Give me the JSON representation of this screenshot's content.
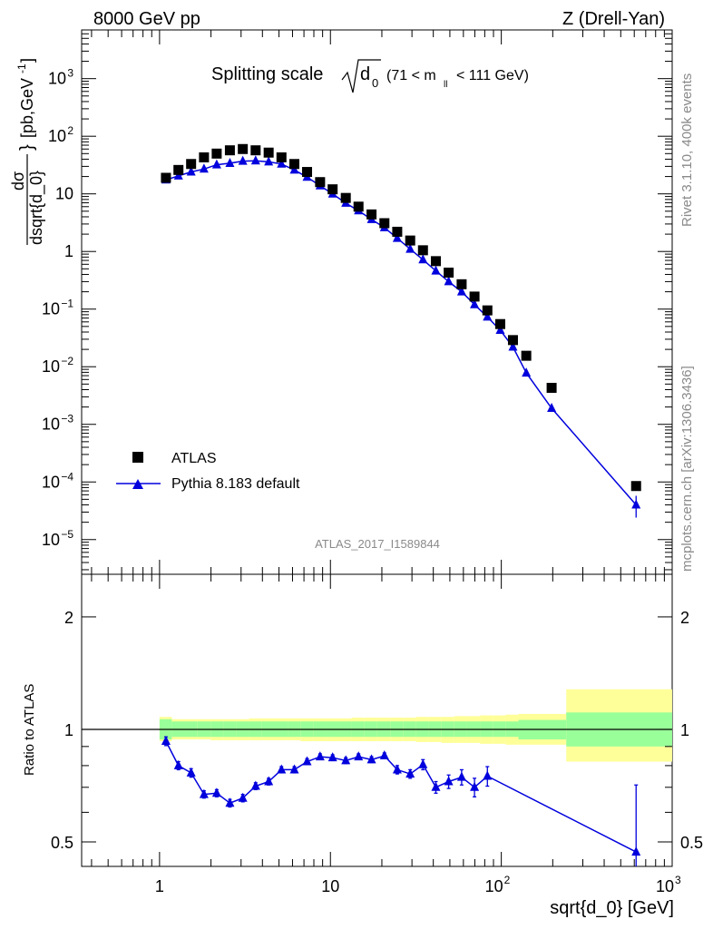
{
  "header": {
    "left_label": "8000 GeV pp",
    "right_label": "Z (Drell-Yan)"
  },
  "plot": {
    "title_prefix": "Splitting scale",
    "title_symbol": "d",
    "title_subscript": "0",
    "title_cut_open": "(71 < m",
    "title_cut_sub": "ll",
    "title_cut_close": "< 111 GeV)",
    "ylabel_top": "dσ",
    "ylabel_bottom": "dsqrt{d_0}",
    "ylabel_units": "[pb,GeV",
    "ylabel_units_exp": "-1",
    "ylabel_units_close": "]",
    "analysis_tag": "ATLAS_2017_I1589844",
    "ratio_ylabel": "Ratio to ATLAS",
    "xlabel": "sqrt{d_0} [GeV]"
  },
  "side_labels": {
    "rivet": "Rivet 3.1.10,  400k events",
    "mcplots": "mcplots.cern.ch [arXiv:1306.3436]"
  },
  "legend": {
    "data_label": "ATLAS",
    "mc_label": "Pythia 8.183 default"
  },
  "colors": {
    "data": "#000000",
    "mc": "#0000dd",
    "band_inner": "#99ff99",
    "band_outer": "#ffff99"
  },
  "axes": {
    "x_ticks": [
      {
        "v": 1,
        "base": "1",
        "exp": ""
      },
      {
        "v": 10,
        "base": "10",
        "exp": ""
      },
      {
        "v": 100,
        "base": "10",
        "exp": "2"
      },
      {
        "v": 1000,
        "base": "10",
        "exp": "3"
      }
    ],
    "y_main_ticks": [
      {
        "v": 1e-05,
        "base": "10",
        "exp": "−5"
      },
      {
        "v": 0.0001,
        "base": "10",
        "exp": "−4"
      },
      {
        "v": 0.001,
        "base": "10",
        "exp": "−3"
      },
      {
        "v": 0.01,
        "base": "10",
        "exp": "−2"
      },
      {
        "v": 0.1,
        "base": "10",
        "exp": "−1"
      },
      {
        "v": 1,
        "base": "1",
        "exp": ""
      },
      {
        "v": 10,
        "base": "10",
        "exp": ""
      },
      {
        "v": 100,
        "base": "10",
        "exp": "2"
      },
      {
        "v": 1000,
        "base": "10",
        "exp": "3"
      }
    ],
    "y_ratio_ticks": [
      "0.5",
      "1",
      "2"
    ]
  },
  "chart_data": [
    {
      "type": "scatter",
      "panel": "main",
      "x_scale": "log",
      "y_scale": "log",
      "xlim": [
        0.35,
        1000
      ],
      "ylim": [
        2.5e-06,
        7000
      ],
      "series": [
        {
          "name": "ATLAS",
          "marker": "square",
          "x": [
            1.09,
            1.29,
            1.53,
            1.82,
            2.16,
            2.58,
            3.07,
            3.65,
            4.35,
            5.17,
            6.15,
            7.3,
            8.7,
            10.3,
            12.3,
            14.6,
            17.4,
            20.7,
            24.6,
            29.3,
            34.8,
            41.4,
            49.2,
            58.6,
            69.7,
            82.9,
            98.6,
            117,
            140,
            197,
            615
          ],
          "y": [
            19,
            26,
            33,
            43,
            50,
            57,
            60,
            57,
            52,
            43,
            33,
            24,
            16,
            12,
            8.5,
            6,
            4.4,
            3.1,
            2.2,
            1.55,
            1.05,
            0.68,
            0.43,
            0.27,
            0.165,
            0.095,
            0.055,
            0.029,
            0.0155,
            0.0043,
            8.5e-05
          ]
        },
        {
          "name": "Pythia 8.183 default",
          "marker": "triangle",
          "x": [
            1.09,
            1.29,
            1.53,
            1.82,
            2.16,
            2.58,
            3.07,
            3.65,
            4.35,
            5.17,
            6.15,
            7.3,
            8.7,
            10.3,
            12.3,
            14.6,
            17.4,
            20.7,
            24.6,
            29.3,
            34.8,
            41.4,
            49.2,
            58.6,
            69.7,
            82.9,
            98.6,
            117,
            140,
            197,
            615
          ],
          "y": [
            17.5,
            20.5,
            24,
            27,
            32,
            34,
            37,
            37.5,
            36,
            33,
            26,
            19.5,
            13.8,
            10,
            6.9,
            5.1,
            3.6,
            2.6,
            1.7,
            1.1,
            0.72,
            0.46,
            0.3,
            0.2,
            0.12,
            0.073,
            0.043,
            0.022,
            0.0078,
            0.0019,
            4e-05
          ]
        }
      ]
    },
    {
      "type": "line",
      "panel": "ratio",
      "x_scale": "log",
      "y_scale": "log",
      "xlim": [
        0.35,
        1000
      ],
      "ylim": [
        0.43,
        2.6
      ],
      "reference_line": 1,
      "band": {
        "x_edges": [
          1,
          1.18,
          1.41,
          1.67,
          1.99,
          2.36,
          2.81,
          3.34,
          3.98,
          4.73,
          5.62,
          6.68,
          7.94,
          9.44,
          11.2,
          13.3,
          15.8,
          18.8,
          22.4,
          26.6,
          31.6,
          37.6,
          44.7,
          53.1,
          63.1,
          75,
          89.1,
          106,
          126,
          240,
          1000
        ],
        "inner_lo": [
          0.94,
          0.955,
          0.955,
          0.955,
          0.955,
          0.955,
          0.955,
          0.955,
          0.955,
          0.955,
          0.955,
          0.955,
          0.955,
          0.955,
          0.955,
          0.955,
          0.955,
          0.955,
          0.955,
          0.955,
          0.955,
          0.955,
          0.955,
          0.955,
          0.955,
          0.955,
          0.955,
          0.955,
          0.94,
          0.9
        ],
        "inner_hi": [
          1.065,
          1.05,
          1.05,
          1.05,
          1.05,
          1.05,
          1.05,
          1.05,
          1.05,
          1.05,
          1.05,
          1.05,
          1.05,
          1.05,
          1.05,
          1.05,
          1.05,
          1.05,
          1.05,
          1.05,
          1.05,
          1.05,
          1.05,
          1.05,
          1.05,
          1.05,
          1.05,
          1.05,
          1.06,
          1.11
        ],
        "outer_lo": [
          0.93,
          0.94,
          0.94,
          0.94,
          0.935,
          0.935,
          0.935,
          0.935,
          0.935,
          0.935,
          0.935,
          0.93,
          0.93,
          0.93,
          0.93,
          0.93,
          0.93,
          0.93,
          0.93,
          0.93,
          0.925,
          0.925,
          0.92,
          0.92,
          0.92,
          0.915,
          0.915,
          0.91,
          0.91,
          0.82
        ],
        "outer_hi": [
          1.08,
          1.065,
          1.065,
          1.065,
          1.065,
          1.065,
          1.065,
          1.07,
          1.07,
          1.07,
          1.07,
          1.07,
          1.07,
          1.07,
          1.07,
          1.075,
          1.075,
          1.075,
          1.075,
          1.075,
          1.08,
          1.08,
          1.08,
          1.085,
          1.085,
          1.09,
          1.09,
          1.095,
          1.1,
          1.28
        ]
      },
      "series": [
        {
          "name": "Pythia 8.183 default",
          "x": [
            1.09,
            1.29,
            1.53,
            1.82,
            2.16,
            2.58,
            3.07,
            3.65,
            4.35,
            5.17,
            6.15,
            7.3,
            8.7,
            10.3,
            12.3,
            14.6,
            17.4,
            20.7,
            24.6,
            29.3,
            34.8,
            41.4,
            49.2,
            58.6,
            69.7,
            82.9,
            615
          ],
          "y": [
            0.93,
            0.8,
            0.765,
            0.67,
            0.675,
            0.635,
            0.655,
            0.705,
            0.725,
            0.78,
            0.78,
            0.82,
            0.845,
            0.84,
            0.825,
            0.845,
            0.83,
            0.85,
            0.78,
            0.76,
            0.805,
            0.7,
            0.725,
            0.745,
            0.7,
            0.75,
            0.47
          ],
          "err": [
            0.025,
            0.02,
            0.02,
            0.015,
            0.015,
            0.015,
            0.015,
            0.015,
            0.015,
            0.015,
            0.015,
            0.015,
            0.015,
            0.015,
            0.015,
            0.015,
            0.015,
            0.015,
            0.02,
            0.02,
            0.025,
            0.025,
            0.03,
            0.035,
            0.04,
            0.045,
            0.24
          ]
        }
      ]
    }
  ]
}
